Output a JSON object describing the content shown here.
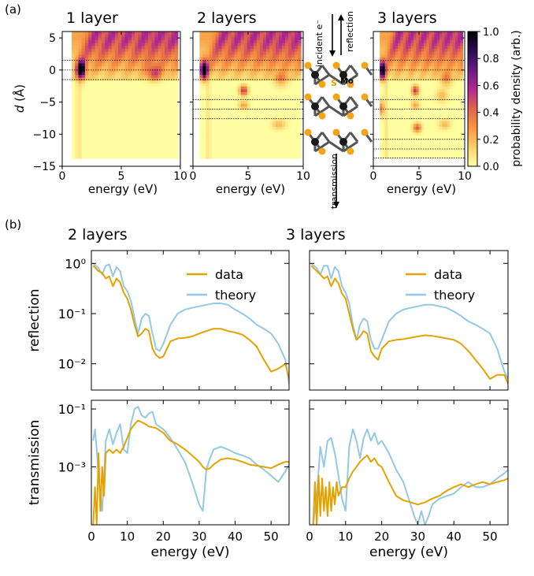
{
  "panel_labels": [
    "(a)",
    "(b)"
  ],
  "colors": {
    "data": "#E3A200",
    "theory": "#93C8E6",
    "cmap": [
      "#FFFFA2",
      "#FBCF6A",
      "#F89540",
      "#E1644C",
      "#B12A90",
      "#6A1B84",
      "#2B0B52",
      "#000004"
    ]
  },
  "heatmaps": {
    "ylabel_prefix": "d",
    "ylabel_suffix": " (Å)",
    "xlabel": "energy (eV)",
    "colorbar_label": "probability density (arb.)",
    "xlim": [
      0,
      10
    ],
    "ylim": [
      -15,
      6
    ],
    "xticks": [
      "0",
      "5",
      "10"
    ],
    "yticks": [
      "5",
      "0",
      "−5",
      "−10",
      "−15"
    ],
    "colorbar_ticks": [
      "0.0",
      "0.2",
      "0.4",
      "0.6",
      "0.8",
      "1.0"
    ],
    "panels": [
      {
        "title": "1 layer",
        "dotted_d": [
          1.5,
          0,
          -1.5
        ]
      },
      {
        "title": "2 layers",
        "dotted_d": [
          1.5,
          0,
          -1.5,
          -4.6,
          -6.1,
          -7.6
        ]
      },
      {
        "title": "3 layers",
        "dotted_d": [
          1.5,
          0,
          -1.5,
          -4.6,
          -6.1,
          -7.6,
          -10.8,
          -12.3,
          -13.7
        ]
      }
    ]
  },
  "schematic": {
    "incident": "incident e⁻",
    "reflection": "reflection",
    "transmission": "transmission",
    "s_label": "S",
    "mo_label": "Mo"
  },
  "chart_data": [
    {
      "type": "line",
      "title": "2 layers",
      "ylabel": "reflection",
      "xlabel": "",
      "yscale": "log",
      "xlim": [
        0,
        55
      ],
      "ylim": [
        0.003,
        1.8
      ],
      "xticks": [
        0,
        10,
        20,
        30,
        40,
        50
      ],
      "yticks": [
        "10⁰",
        "10⁻¹",
        "10⁻²"
      ],
      "legend": "top-right",
      "series": [
        {
          "name": "data",
          "x": [
            0.5,
            2,
            3,
            4,
            5,
            6,
            7,
            8,
            9,
            10,
            11,
            12,
            13,
            14,
            15,
            16,
            17,
            18,
            19,
            20,
            22,
            24,
            26,
            28,
            30,
            32,
            34,
            36,
            38,
            40,
            42,
            44,
            46,
            48,
            50,
            52,
            54,
            55
          ],
          "y": [
            0.9,
            0.7,
            0.65,
            0.5,
            0.55,
            0.35,
            0.5,
            0.42,
            0.26,
            0.2,
            0.12,
            0.06,
            0.035,
            0.04,
            0.05,
            0.045,
            0.02,
            0.015,
            0.013,
            0.014,
            0.028,
            0.032,
            0.033,
            0.035,
            0.04,
            0.045,
            0.05,
            0.05,
            0.045,
            0.042,
            0.038,
            0.03,
            0.022,
            0.012,
            0.007,
            0.008,
            0.01,
            0.005
          ]
        },
        {
          "name": "theory",
          "x": [
            0.5,
            2,
            3,
            4,
            5,
            6,
            7,
            8,
            9,
            10,
            11,
            12,
            13,
            14,
            15,
            16,
            17,
            18,
            19,
            20,
            22,
            24,
            26,
            28,
            30,
            32,
            34,
            36,
            38,
            40,
            42,
            44,
            46,
            48,
            50,
            52,
            54,
            55
          ],
          "y": [
            1.0,
            0.8,
            0.6,
            0.9,
            0.95,
            0.55,
            0.85,
            0.7,
            0.35,
            0.28,
            0.18,
            0.08,
            0.04,
            0.08,
            0.1,
            0.09,
            0.04,
            0.02,
            0.018,
            0.025,
            0.06,
            0.1,
            0.12,
            0.13,
            0.14,
            0.15,
            0.16,
            0.16,
            0.15,
            0.12,
            0.1,
            0.08,
            0.06,
            0.05,
            0.04,
            0.025,
            0.012,
            0.004
          ]
        }
      ]
    },
    {
      "type": "line",
      "title": "3 layers",
      "ylabel": "",
      "xlabel": "",
      "yscale": "log",
      "xlim": [
        0,
        55
      ],
      "ylim": [
        0.003,
        1.8
      ],
      "xticks": [
        0,
        10,
        20,
        30,
        40,
        50
      ],
      "legend": "top-right",
      "series": [
        {
          "name": "data",
          "x": [
            0.5,
            2,
            3,
            4,
            5,
            6,
            7,
            8,
            9,
            10,
            11,
            12,
            13,
            14,
            15,
            16,
            17,
            18,
            19,
            20,
            22,
            24,
            26,
            28,
            30,
            32,
            34,
            36,
            38,
            40,
            42,
            44,
            46,
            48,
            50,
            52,
            54,
            55
          ],
          "y": [
            0.9,
            0.7,
            0.6,
            0.5,
            0.55,
            0.35,
            0.5,
            0.4,
            0.25,
            0.2,
            0.1,
            0.05,
            0.03,
            0.035,
            0.045,
            0.04,
            0.018,
            0.014,
            0.012,
            0.02,
            0.028,
            0.03,
            0.031,
            0.033,
            0.035,
            0.037,
            0.036,
            0.034,
            0.032,
            0.03,
            0.025,
            0.018,
            0.012,
            0.008,
            0.005,
            0.006,
            0.006,
            0.004
          ]
        },
        {
          "name": "theory",
          "x": [
            0.5,
            2,
            3,
            4,
            5,
            6,
            7,
            8,
            9,
            10,
            11,
            12,
            13,
            14,
            15,
            16,
            17,
            18,
            19,
            20,
            22,
            24,
            26,
            28,
            30,
            32,
            34,
            36,
            38,
            40,
            42,
            44,
            46,
            48,
            50,
            52,
            54,
            55
          ],
          "y": [
            1.0,
            0.8,
            0.6,
            0.9,
            0.9,
            0.5,
            0.85,
            0.7,
            0.35,
            0.26,
            0.16,
            0.06,
            0.03,
            0.06,
            0.08,
            0.07,
            0.03,
            0.02,
            0.02,
            0.03,
            0.07,
            0.1,
            0.12,
            0.13,
            0.14,
            0.15,
            0.15,
            0.14,
            0.13,
            0.11,
            0.09,
            0.07,
            0.06,
            0.05,
            0.04,
            0.02,
            0.007,
            0.005
          ]
        }
      ]
    },
    {
      "type": "line",
      "title": "",
      "ylabel": "transmission",
      "xlabel": "energy (eV)",
      "yscale": "log",
      "xlim": [
        0,
        55
      ],
      "ylim": [
        1e-05,
        0.2
      ],
      "xticks": [
        0,
        10,
        20,
        30,
        40,
        50
      ],
      "yticks": [
        "10⁻¹",
        "10⁻³"
      ],
      "series": [
        {
          "name": "data",
          "x": [
            0.5,
            1,
            1.5,
            2,
            2.5,
            3,
            3.5,
            4,
            5,
            6,
            7,
            8,
            9,
            10,
            11,
            12,
            13,
            14,
            15,
            16,
            18,
            20,
            22,
            24,
            26,
            28,
            30,
            31,
            32,
            33,
            34,
            36,
            38,
            40,
            42,
            44,
            46,
            48,
            50,
            52,
            54,
            55
          ],
          "y": [
            1e-05,
            0.0002,
            1e-05,
            0.003,
            3e-05,
            0.001,
            0.0001,
            0.003,
            0.004,
            0.003,
            0.004,
            0.003,
            0.005,
            0.01,
            0.02,
            0.03,
            0.04,
            0.035,
            0.03,
            0.025,
            0.022,
            0.015,
            0.008,
            0.006,
            0.004,
            0.0025,
            0.0015,
            0.001,
            0.0008,
            0.0009,
            0.0012,
            0.0018,
            0.002,
            0.0018,
            0.0015,
            0.0012,
            0.0011,
            0.001,
            0.0009,
            0.0012,
            0.0015,
            0.0015
          ]
        },
        {
          "name": "theory",
          "x": [
            0.5,
            1,
            1.5,
            2,
            3,
            4,
            5,
            6,
            7,
            8,
            9,
            10,
            11,
            12,
            13,
            14,
            15,
            16,
            17,
            18,
            20,
            22,
            24,
            26,
            28,
            30,
            31,
            32,
            33,
            34,
            36,
            38,
            40,
            42,
            44,
            46,
            48,
            50,
            52,
            54,
            55
          ],
          "y": [
            0.008,
            0.02,
            0.004,
            0.0005,
            3e-05,
            0.008,
            0.02,
            0.006,
            0.015,
            0.03,
            0.004,
            0.003,
            0.03,
            0.1,
            0.12,
            0.06,
            0.05,
            0.07,
            0.08,
            0.03,
            0.02,
            0.01,
            0.004,
            0.0015,
            0.0003,
            5e-05,
            3e-05,
            0.0008,
            0.002,
            0.004,
            0.005,
            0.004,
            0.003,
            0.0025,
            0.002,
            0.0012,
            0.0008,
            0.0005,
            0.0003,
            0.0007,
            0.0012
          ]
        }
      ]
    },
    {
      "type": "line",
      "title": "",
      "ylabel": "",
      "xlabel": "energy (eV)",
      "yscale": "log",
      "xlim": [
        0,
        55
      ],
      "ylim": [
        1e-05,
        0.2
      ],
      "xticks": [
        0,
        10,
        20,
        30,
        40,
        50
      ],
      "series": [
        {
          "name": "data",
          "x": [
            1,
            1.5,
            2,
            2.5,
            3,
            3.5,
            4,
            4.5,
            5,
            5.5,
            6,
            6.5,
            7,
            7.5,
            8,
            9,
            10,
            11,
            12,
            13,
            14,
            15,
            16,
            17,
            18,
            19,
            20,
            22,
            24,
            26,
            28,
            30,
            32,
            34,
            36,
            38,
            40,
            42,
            44,
            46,
            48,
            50,
            52,
            54,
            55
          ],
          "y": [
            1e-05,
            0.0003,
            1e-05,
            0.0005,
            2e-05,
            0.0004,
            3e-05,
            0.0002,
            2e-05,
            0.0003,
            3e-05,
            0.0002,
            5e-05,
            0.0003,
            0.0001,
            0.0002,
            0.0002,
            0.0004,
            0.0007,
            0.001,
            0.0015,
            0.002,
            0.0025,
            0.0015,
            0.002,
            0.0012,
            0.001,
            0.0003,
            0.0001,
            7e-05,
            6e-05,
            5e-05,
            6e-05,
            8e-05,
            0.0001,
            0.00015,
            0.0002,
            0.00025,
            0.0002,
            0.00025,
            0.0003,
            0.00025,
            0.0003,
            0.00035,
            0.0004
          ]
        },
        {
          "name": "theory",
          "x": [
            1,
            2,
            3,
            4,
            5,
            6,
            7,
            8,
            9,
            10,
            11,
            12,
            13,
            14,
            15,
            16,
            17,
            18,
            19,
            20,
            22,
            24,
            26,
            28,
            29,
            30,
            31,
            32,
            33,
            34,
            36,
            38,
            40,
            42,
            44,
            46,
            48,
            50,
            52,
            54,
            55
          ],
          "y": [
            1e-05,
            0.0001,
            0.005,
            0.001,
            0.008,
            0.01,
            0.003,
            0.0005,
            8e-05,
            3e-05,
            0.005,
            0.02,
            0.008,
            0.002,
            0.01,
            0.02,
            0.008,
            0.015,
            0.006,
            0.008,
            0.003,
            0.0008,
            0.0003,
            5e-05,
            2e-05,
            1e-05,
            3e-05,
            1e-05,
            2e-05,
            5e-05,
            8e-05,
            0.0001,
            0.00012,
            0.0002,
            0.0003,
            0.0002,
            0.0002,
            0.00025,
            0.0004,
            0.0006,
            0.0008
          ]
        }
      ]
    }
  ]
}
